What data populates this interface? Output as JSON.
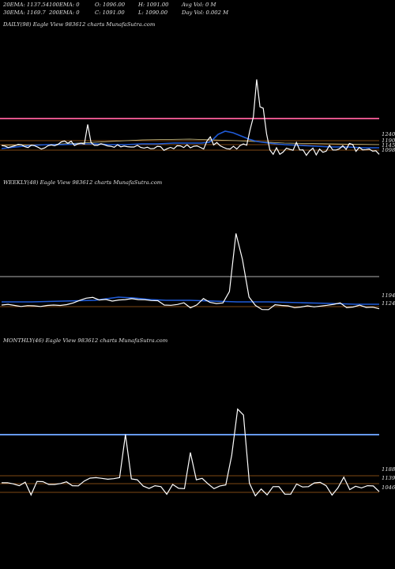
{
  "header": {
    "ema20": "20EMA: 1137.54",
    "ema100": "100EMA: 0",
    "open": "O: 1096.00",
    "high": "H: 1091.00",
    "avg_vol": "Avg Vol: 0  M",
    "ema30": "30EMA: 1169.7",
    "ema200": "200EMA: 0",
    "close": "C: 1091.00",
    "low": "L: 1090.00",
    "day_vol": "Day Vol: 0.002  M"
  },
  "colors": {
    "background": "#000000",
    "price": "#ffffff",
    "ema_blue": "#1f5bd8",
    "pink_level": "#e0548a",
    "gray_level": "#8c8c8c",
    "light_blue_level": "#6699ee",
    "orange_level": "#a8601c",
    "khaki_ema": "#cfc68a"
  },
  "chart_data": [
    {
      "type": "line",
      "title": "DAILY(98) Eagle  View  983612  charts MunafaSutra.com",
      "right_labels": [
        "1240",
        "1190",
        "1145",
        "1098"
      ],
      "series": [
        {
          "values": [
            1150,
            1147,
            1139,
            1144,
            1149,
            1156,
            1154,
            1144,
            1139,
            1152,
            1149,
            1141,
            1131,
            1137,
            1149,
            1153,
            1149,
            1156,
            1169,
            1174,
            1162,
            1173,
            1150,
            1158,
            1163,
            1158,
            1262,
            1166,
            1151,
            1151,
            1160,
            1154,
            1148,
            1146,
            1141,
            1154,
            1143,
            1147,
            1144,
            1142,
            1142,
            1151,
            1140,
            1136,
            1141,
            1133,
            1134,
            1146,
            1144,
            1124,
            1133,
            1140,
            1133,
            1149,
            1148,
            1139,
            1154,
            1138,
            1146,
            1148,
            1140,
            1131,
            1174,
            1196,
            1153,
            1166,
            1149,
            1140,
            1133,
            1131,
            1146,
            1131,
            1150,
            1158,
            1152,
            1233,
            1302,
            1502,
            1356,
            1349,
            1213,
            1126,
            1103,
            1138,
            1103,
            1115,
            1136,
            1130,
            1125,
            1166,
            1126,
            1127,
            1098,
            1121,
            1136,
            1100,
            1131,
            1114,
            1120,
            1151,
            1126,
            1126,
            1133,
            1149,
            1129,
            1161,
            1155,
            1119,
            1140,
            1127,
            1128,
            1131,
            1120,
            1122,
            1103
          ]
        }
      ]
    },
    {
      "type": "line",
      "title": "WEEKLY(48) Eagle  View  983612  charts MunafaSutra.com",
      "right_labels": [
        "1194",
        "1124"
      ],
      "series": [
        {
          "values": [
            1124,
            1129,
            1121,
            1113,
            1120,
            1118,
            1113,
            1121,
            1124,
            1121,
            1127,
            1140,
            1159,
            1176,
            1182,
            1162,
            1166,
            1154,
            1162,
            1165,
            1172,
            1165,
            1164,
            1158,
            1157,
            1124,
            1122,
            1128,
            1141,
            1103,
            1125,
            1173,
            1144,
            1135,
            1140,
            1226,
            1665,
            1468,
            1184,
            1121,
            1090,
            1089,
            1126,
            1121,
            1118,
            1104,
            1109,
            1118,
            1110,
            1116,
            1122,
            1129,
            1140,
            1105,
            1109,
            1123,
            1106,
            1108,
            1096
          ]
        }
      ]
    },
    {
      "type": "line",
      "title": "MONTHLY(46) Eagle  View  983612  charts MunafaSutra.com",
      "right_labels": [
        "1188",
        "1139",
        "1046"
      ],
      "series": [
        {
          "values": [
            1129,
            1130,
            1121,
            1108,
            1134,
            1041,
            1139,
            1137,
            1117,
            1117,
            1124,
            1136,
            1108,
            1107,
            1142,
            1163,
            1166,
            1161,
            1155,
            1159,
            1166,
            1479,
            1157,
            1151,
            1105,
            1088,
            1108,
            1101,
            1046,
            1117,
            1089,
            1087,
            1348,
            1151,
            1161,
            1121,
            1087,
            1106,
            1114,
            1327,
            1662,
            1619,
            1126,
            1035,
            1084,
            1042,
            1101,
            1102,
            1047,
            1047,
            1120,
            1099,
            1101,
            1128,
            1132,
            1108,
            1040,
            1092,
            1170,
            1080,
            1104,
            1092,
            1108,
            1106,
            1065
          ]
        }
      ]
    }
  ]
}
